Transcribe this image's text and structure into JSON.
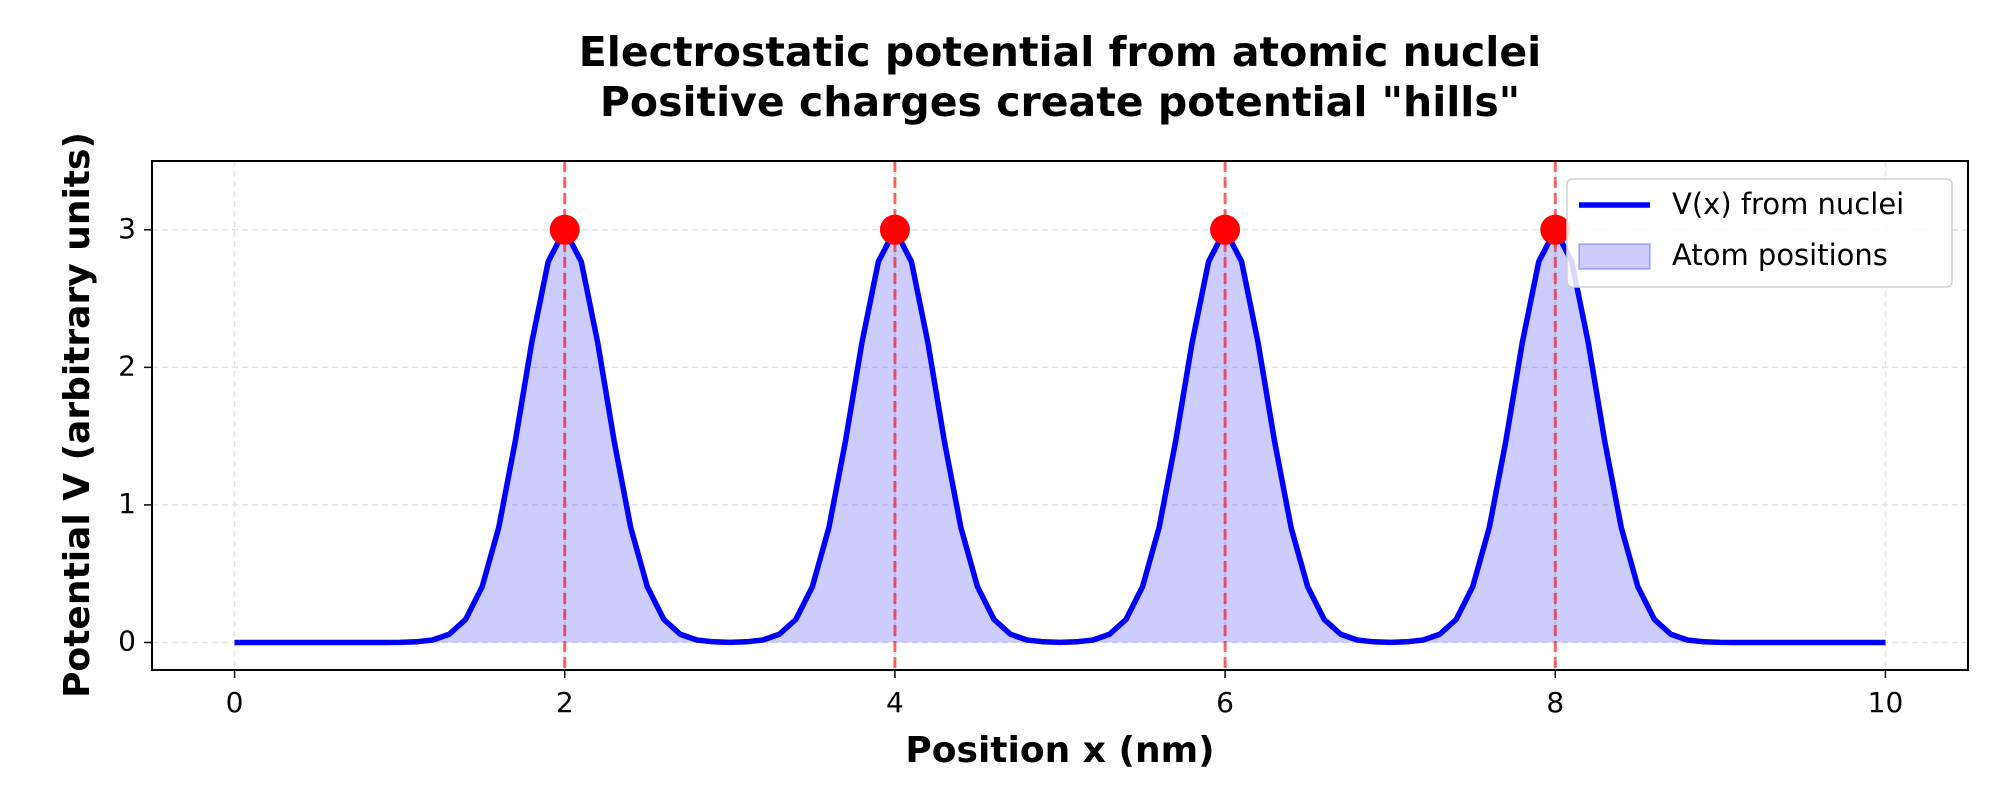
{
  "chart_data": {
    "type": "line",
    "title": "Electrostatic potential from atomic nuclei",
    "subtitle": "Positive charges create potential \"hills\"",
    "x_label": "Position x (nm)",
    "y_label": "Potential V (arbitrary units)",
    "x": [
      0,
      0.1,
      0.2,
      0.3,
      0.4,
      0.5,
      0.6,
      0.7,
      0.8,
      0.9,
      1,
      1.1,
      1.2,
      1.3,
      1.4,
      1.5,
      1.6,
      1.7,
      1.8,
      1.9,
      2,
      2.1,
      2.2,
      2.3,
      2.4,
      2.5,
      2.6,
      2.7,
      2.8,
      2.9,
      3,
      3.1,
      3.2,
      3.3,
      3.4,
      3.5,
      3.6,
      3.7,
      3.8,
      3.9,
      4,
      4.1,
      4.2,
      4.3,
      4.4,
      4.5,
      4.6,
      4.7,
      4.8,
      4.9,
      5,
      5.1,
      5.2,
      5.3,
      5.4,
      5.5,
      5.6,
      5.7,
      5.8,
      5.9,
      6,
      6.1,
      6.2,
      6.3,
      6.4,
      6.5,
      6.6,
      6.7,
      6.8,
      6.9,
      7,
      7.1,
      7.2,
      7.3,
      7.4,
      7.5,
      7.6,
      7.7,
      7.8,
      7.9,
      8,
      8.1,
      8.2,
      8.3,
      8.4,
      8.5,
      8.6,
      8.7,
      8.8,
      8.9,
      9,
      9.1,
      9.2,
      9.3,
      9.4,
      9.5,
      9.6,
      9.7,
      9.8,
      9.9,
      10
    ],
    "series": [
      {
        "name": "V(x) from nuclei",
        "color": "#0000ff",
        "values": [
          0,
          0,
          0,
          0,
          0,
          0,
          0,
          0,
          0,
          0,
          0.001,
          0.005,
          0.018,
          0.06,
          0.168,
          0.406,
          0.834,
          1.46,
          2.178,
          2.769,
          3,
          2.769,
          2.178,
          1.46,
          0.834,
          0.406,
          0.168,
          0.06,
          0.018,
          0.005,
          0.001,
          0.005,
          0.018,
          0.06,
          0.168,
          0.406,
          0.834,
          1.46,
          2.178,
          2.769,
          3,
          2.769,
          2.178,
          1.46,
          0.834,
          0.406,
          0.168,
          0.06,
          0.018,
          0.005,
          0.001,
          0.005,
          0.018,
          0.06,
          0.168,
          0.406,
          0.834,
          1.46,
          2.178,
          2.769,
          3,
          2.769,
          2.178,
          1.46,
          0.834,
          0.406,
          0.168,
          0.06,
          0.018,
          0.005,
          0.001,
          0.005,
          0.018,
          0.06,
          0.168,
          0.406,
          0.834,
          1.46,
          2.178,
          2.769,
          3,
          2.769,
          2.178,
          1.46,
          0.834,
          0.406,
          0.168,
          0.06,
          0.018,
          0.005,
          0.001,
          0,
          0,
          0,
          0,
          0,
          0,
          0,
          0,
          0,
          0
        ]
      }
    ],
    "fill": {
      "name": "Atom positions",
      "color": "#0000ff",
      "alpha": 0.2
    },
    "atoms": {
      "x": [
        2,
        4,
        6,
        8
      ],
      "y": [
        3,
        3,
        3,
        3
      ],
      "color": "#ff0000"
    },
    "xlim": [
      -0.5,
      10.5
    ],
    "ylim": [
      -0.2,
      3.5
    ],
    "xticks": [
      0,
      2,
      4,
      6,
      8,
      10
    ],
    "yticks": [
      0,
      1,
      2,
      3
    ],
    "grid": true,
    "legend": "upper right"
  }
}
